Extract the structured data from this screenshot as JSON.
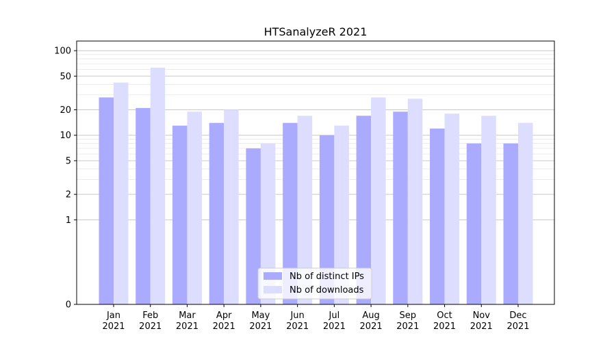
{
  "chart_data": {
    "type": "bar",
    "title": "HTSanalyzeR 2021",
    "xlabel": "",
    "ylabel": "",
    "yscale": "symlog",
    "ylim": [
      0,
      130
    ],
    "y_ticks": [
      0,
      1,
      2,
      5,
      10,
      20,
      50,
      100
    ],
    "y_tick_labels": [
      "0",
      "1",
      "2",
      "5",
      "10",
      "20",
      "50",
      "100"
    ],
    "categories": [
      "Jan\n2021",
      "Feb\n2021",
      "Mar\n2021",
      "Apr\n2021",
      "May\n2021",
      "Jun\n2021",
      "Jul\n2021",
      "Aug\n2021",
      "Sep\n2021",
      "Oct\n2021",
      "Nov\n2021",
      "Dec\n2021"
    ],
    "series": [
      {
        "name": "Nb of distinct IPs",
        "color": "#aaaaff",
        "values": [
          28,
          21,
          13,
          14,
          7,
          14,
          10,
          17,
          19,
          12,
          8,
          8
        ]
      },
      {
        "name": "Nb of downloads",
        "color": "#ddddff",
        "values": [
          42,
          63,
          19,
          20,
          8,
          17,
          13,
          28,
          27,
          18,
          17,
          14
        ]
      }
    ],
    "grid": true,
    "legend_position": "bottom-center"
  }
}
